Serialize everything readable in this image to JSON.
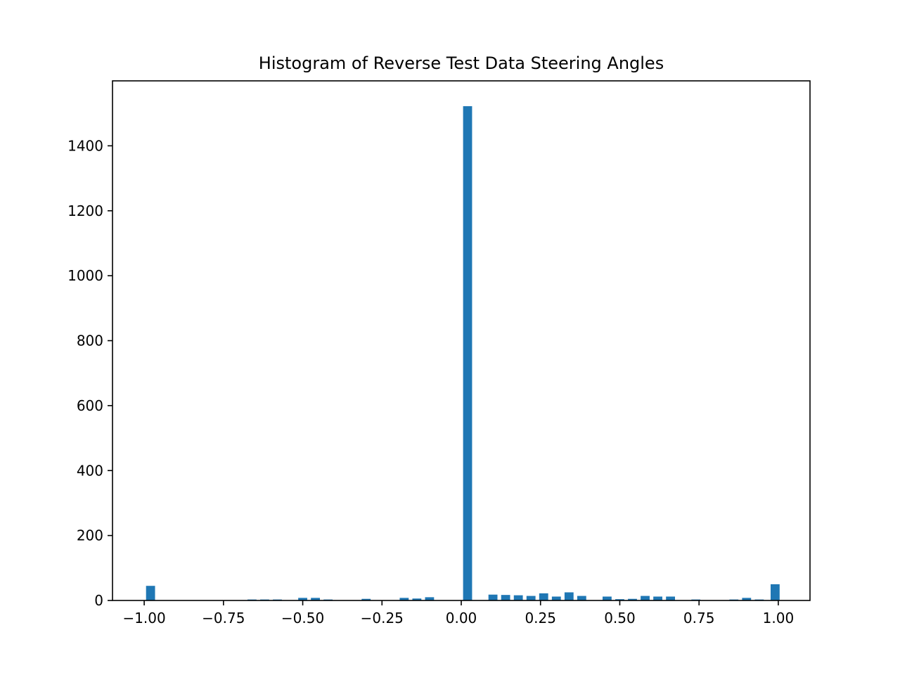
{
  "chart_data": {
    "type": "bar",
    "title": "Histogram of Reverse Test Data Steering Angles",
    "xlabel": "",
    "ylabel": "",
    "xlim": [
      -1.1,
      1.1
    ],
    "ylim": [
      0,
      1600
    ],
    "bin_width": 0.0284,
    "color": "#1f77b4",
    "x_ticks": [
      -1.0,
      -0.75,
      -0.5,
      -0.25,
      0.0,
      0.25,
      0.5,
      0.75,
      1.0
    ],
    "x_tick_labels": [
      "−1.00",
      "−0.75",
      "−0.50",
      "−0.25",
      "0.00",
      "0.25",
      "0.50",
      "0.75",
      "1.00"
    ],
    "y_ticks": [
      0,
      200,
      400,
      600,
      800,
      1000,
      1200,
      1400
    ],
    "y_tick_labels": [
      "0",
      "200",
      "400",
      "600",
      "800",
      "1000",
      "1200",
      "1400"
    ],
    "bars": [
      {
        "x": -0.98,
        "value": 45
      },
      {
        "x": -0.66,
        "value": 3
      },
      {
        "x": -0.62,
        "value": 3
      },
      {
        "x": -0.58,
        "value": 3
      },
      {
        "x": -0.5,
        "value": 8
      },
      {
        "x": -0.46,
        "value": 8
      },
      {
        "x": -0.42,
        "value": 3
      },
      {
        "x": -0.3,
        "value": 5
      },
      {
        "x": -0.18,
        "value": 8
      },
      {
        "x": -0.14,
        "value": 6
      },
      {
        "x": -0.1,
        "value": 10
      },
      {
        "x": 0.02,
        "value": 1522
      },
      {
        "x": 0.1,
        "value": 18
      },
      {
        "x": 0.14,
        "value": 17
      },
      {
        "x": 0.18,
        "value": 16
      },
      {
        "x": 0.22,
        "value": 14
      },
      {
        "x": 0.26,
        "value": 22
      },
      {
        "x": 0.3,
        "value": 12
      },
      {
        "x": 0.34,
        "value": 25
      },
      {
        "x": 0.38,
        "value": 14
      },
      {
        "x": 0.46,
        "value": 12
      },
      {
        "x": 0.5,
        "value": 4
      },
      {
        "x": 0.54,
        "value": 5
      },
      {
        "x": 0.58,
        "value": 14
      },
      {
        "x": 0.62,
        "value": 12
      },
      {
        "x": 0.66,
        "value": 12
      },
      {
        "x": 0.74,
        "value": 3
      },
      {
        "x": 0.86,
        "value": 3
      },
      {
        "x": 0.9,
        "value": 8
      },
      {
        "x": 0.94,
        "value": 3
      },
      {
        "x": 0.99,
        "value": 50
      }
    ]
  }
}
